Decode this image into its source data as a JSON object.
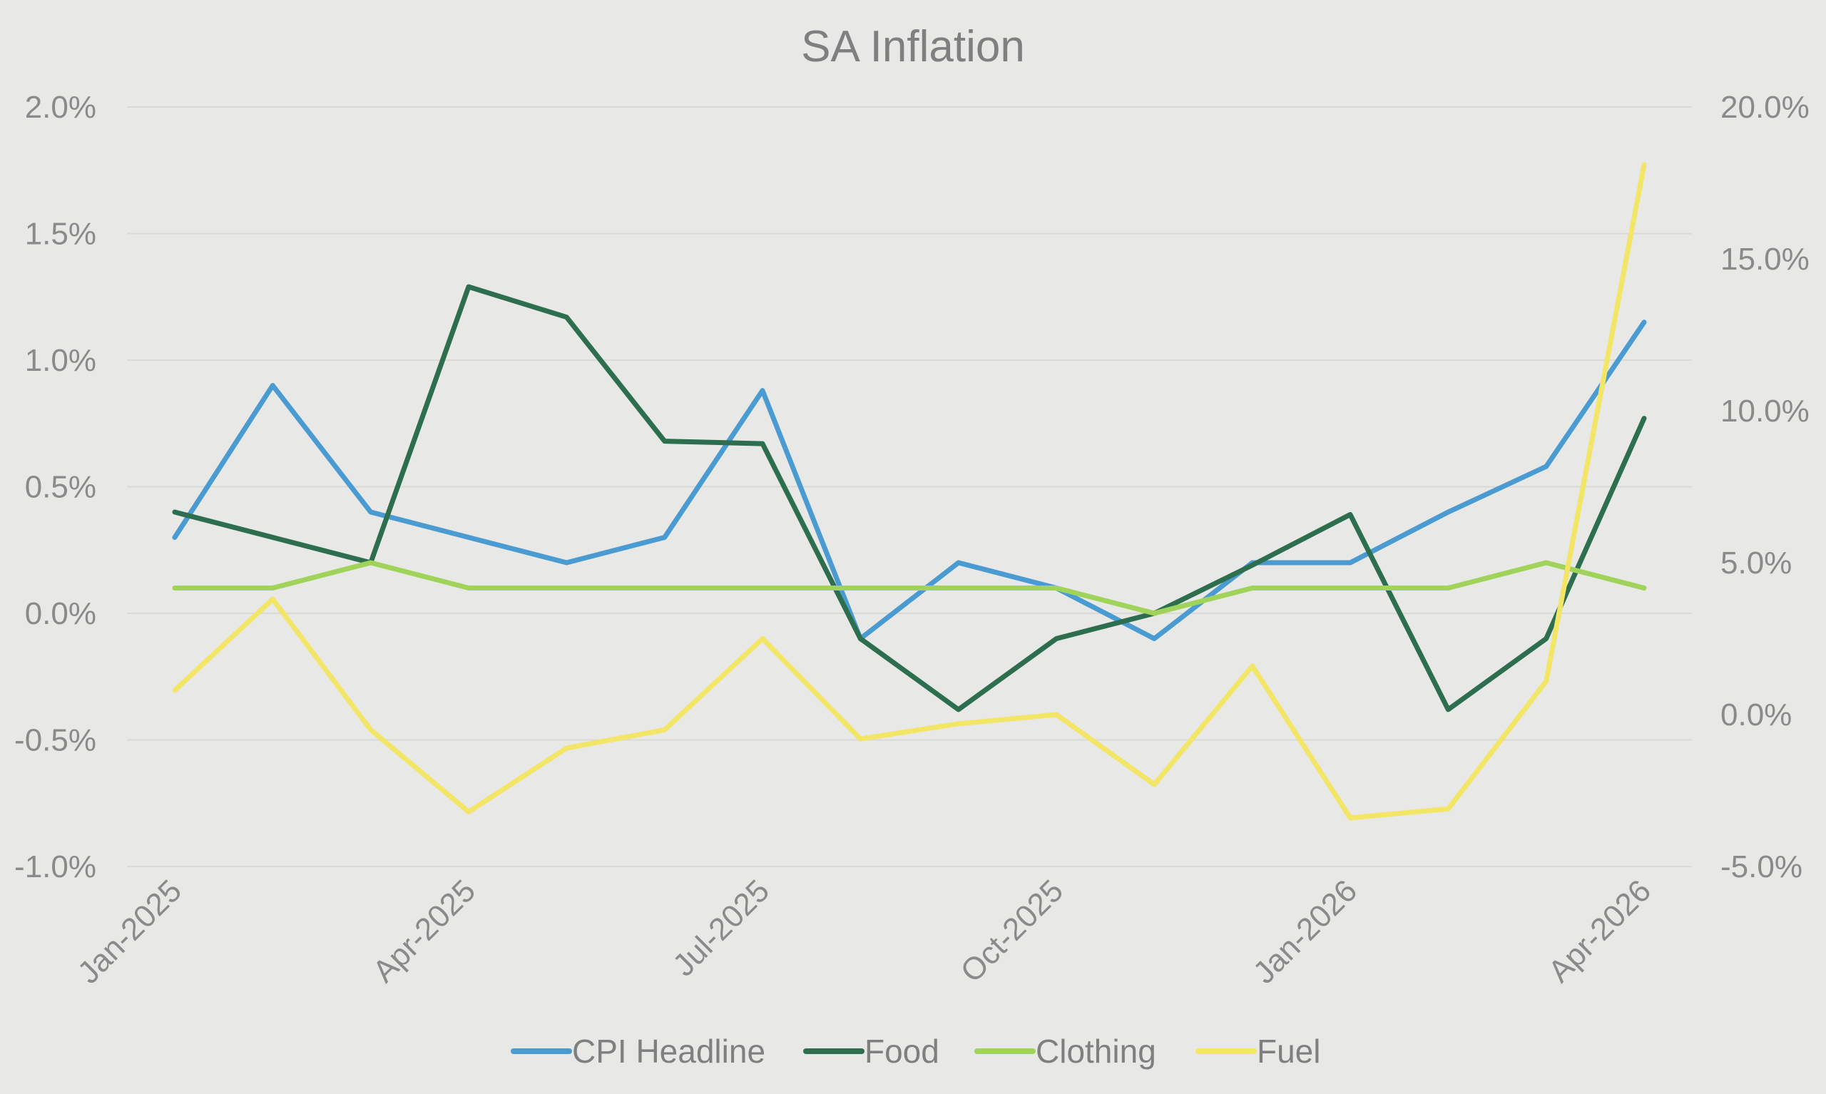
{
  "chart_data": {
    "type": "line",
    "title": "SA Inflation",
    "x": [
      "Jan-2025",
      "Feb-2025",
      "Mar-2025",
      "Apr-2025",
      "May-2025",
      "Jun-2025",
      "Jul-2025",
      "Aug-2025",
      "Sep-2025",
      "Oct-2025",
      "Nov-2025",
      "Dec-2025",
      "Jan-2026",
      "Feb-2026",
      "Mar-2026",
      "Apr-2026"
    ],
    "x_tick_labels": [
      "Jan-2025",
      "Apr-2025",
      "Jul-2025",
      "Oct-2025",
      "Jan-2026",
      "Apr-2026"
    ],
    "y_left": {
      "range": [
        -1.0,
        2.0
      ],
      "ticks": [
        "2.0%",
        "1.5%",
        "1.0%",
        "0.5%",
        "0.0%",
        "-0.5%",
        "-1.0%"
      ]
    },
    "y_right": {
      "range": [
        -5.0,
        20.0
      ],
      "ticks": [
        "20.0%",
        "15.0%",
        "10.0%",
        "5.0%",
        "0.0%",
        "-5.0%"
      ]
    },
    "grid": true,
    "legend_position": "bottom",
    "series": [
      {
        "name": "CPI Headline",
        "axis": "left",
        "color": "#4a9bd1",
        "values": [
          0.3,
          0.9,
          0.4,
          0.3,
          0.2,
          0.3,
          0.88,
          -0.1,
          0.2,
          0.1,
          -0.1,
          0.2,
          0.2,
          0.4,
          0.58,
          1.15
        ]
      },
      {
        "name": "Food",
        "axis": "left",
        "color": "#2d6e4e",
        "values": [
          0.4,
          0.3,
          0.2,
          1.29,
          1.17,
          0.68,
          0.67,
          -0.1,
          -0.38,
          -0.1,
          0.0,
          0.19,
          0.39,
          -0.38,
          -0.1,
          0.77
        ]
      },
      {
        "name": "Clothing",
        "axis": "left",
        "color": "#9fd35a",
        "values": [
          0.1,
          0.1,
          0.2,
          0.1,
          0.1,
          0.1,
          0.1,
          0.1,
          0.1,
          0.1,
          0.0,
          0.1,
          0.1,
          0.1,
          0.2,
          0.1
        ]
      },
      {
        "name": "Fuel",
        "axis": "right",
        "color": "#f3e566",
        "values": [
          0.8,
          3.8,
          -0.5,
          -3.2,
          -1.1,
          -0.5,
          2.5,
          -0.8,
          -0.3,
          0.0,
          -2.3,
          1.6,
          -3.4,
          -3.1,
          1.1,
          18.1
        ]
      }
    ]
  }
}
